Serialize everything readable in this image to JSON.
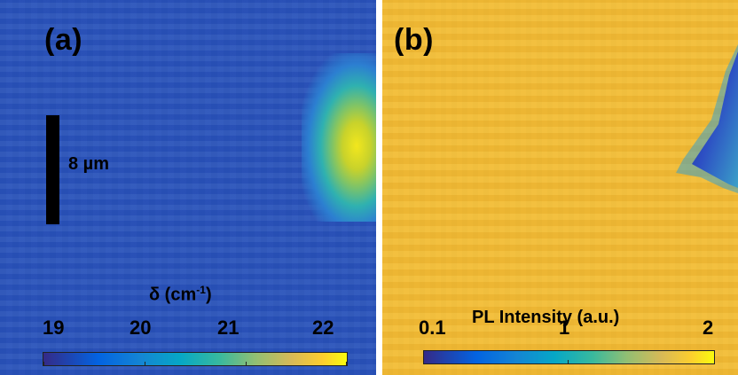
{
  "panels": [
    {
      "label": "(a)",
      "scale_bar_text": "8 µm",
      "colorbar_title": "δ (cm",
      "colorbar_title_sup": "-1",
      "colorbar_title_end": ")",
      "ticks": [
        "19",
        "20",
        "21",
        "22"
      ],
      "colormap": "parula"
    },
    {
      "label": "(b)",
      "colorbar_title": "PL Intensity (a.u.)",
      "ticks": [
        "0.1",
        "1",
        "2"
      ],
      "colormap": "parula"
    }
  ],
  "colors": {
    "panel_a_background": "#2f56b8",
    "panel_b_background": "#f0bb3a",
    "hotspot_a": "#f2e71d",
    "dark_streak_b": "#1b2c8f"
  }
}
